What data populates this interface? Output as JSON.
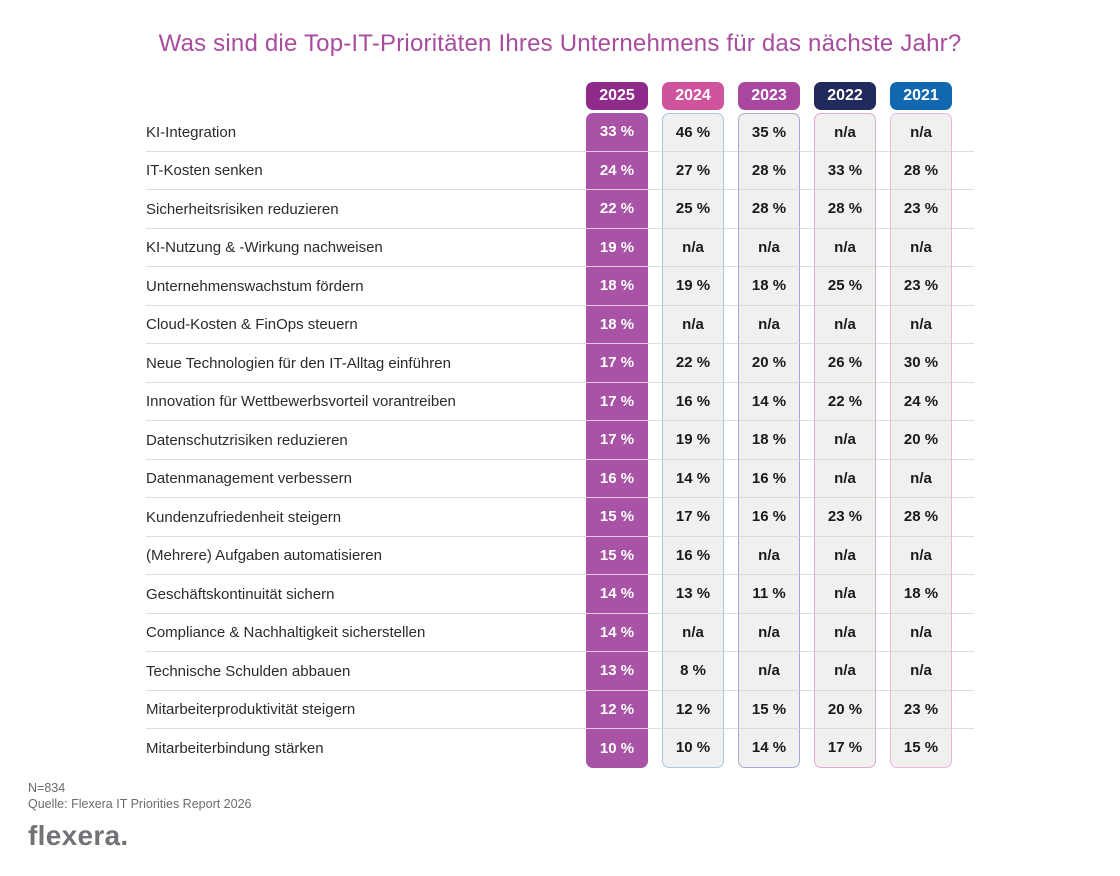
{
  "title": "Was sind die Top-IT-Prioritäten Ihres Unternehmens für das nächste Jahr?",
  "table": {
    "years": [
      {
        "label": "2025",
        "chip_bg": "#8E2B8B",
        "style": "solid",
        "column_bg": "#A853A5",
        "border": ""
      },
      {
        "label": "2024",
        "chip_bg": "#D0539E",
        "style": "outlined",
        "column_bg": "#F0F0EE",
        "border": "#A9C6E3"
      },
      {
        "label": "2023",
        "chip_bg": "#A8479F",
        "style": "outlined",
        "column_bg": "#F0F0EE",
        "border": "#A3A9D2"
      },
      {
        "label": "2022",
        "chip_bg": "#222A5C",
        "style": "outlined",
        "column_bg": "#F0F0EE",
        "border": "#E3A8D4"
      },
      {
        "label": "2021",
        "chip_bg": "#1268AE",
        "style": "outlined",
        "column_bg": "#F0F0EE",
        "border": "#E8B7DC"
      }
    ],
    "rows": [
      {
        "label": "KI-Integration",
        "values": [
          "33 %",
          "46 %",
          "35 %",
          "n/a",
          "n/a"
        ]
      },
      {
        "label": "IT-Kosten senken",
        "values": [
          "24 %",
          "27 %",
          "28 %",
          "33 %",
          "28 %"
        ]
      },
      {
        "label": "Sicherheitsrisiken reduzieren",
        "values": [
          "22 %",
          "25 %",
          "28 %",
          "28 %",
          "23 %"
        ]
      },
      {
        "label": "KI-Nutzung & -Wirkung nachweisen",
        "values": [
          "19 %",
          "n/a",
          "n/a",
          "n/a",
          "n/a"
        ]
      },
      {
        "label": "Unternehmenswachstum fördern",
        "values": [
          "18 %",
          "19 %",
          "18 %",
          "25 %",
          "23 %"
        ]
      },
      {
        "label": "Cloud-Kosten & FinOps steuern",
        "values": [
          "18 %",
          "n/a",
          "n/a",
          "n/a",
          "n/a"
        ]
      },
      {
        "label": "Neue Technologien für den IT-Alltag einführen",
        "values": [
          "17 %",
          "22 %",
          "20 %",
          "26 %",
          "30 %"
        ]
      },
      {
        "label": "Innovation für Wettbewerbsvorteil vorantreiben",
        "values": [
          "17 %",
          "16 %",
          "14 %",
          "22 %",
          "24 %"
        ]
      },
      {
        "label": "Datenschutzrisiken reduzieren",
        "values": [
          "17 %",
          "19 %",
          "18 %",
          "n/a",
          "20 %"
        ]
      },
      {
        "label": "Datenmanagement verbessern",
        "values": [
          "16 %",
          "14 %",
          "16 %",
          "n/a",
          "n/a"
        ]
      },
      {
        "label": "Kundenzufriedenheit steigern",
        "values": [
          "15 %",
          "17 %",
          "16 %",
          "23 %",
          "28 %"
        ]
      },
      {
        "label": "(Mehrere) Aufgaben automatisieren",
        "values": [
          "15 %",
          "16 %",
          "n/a",
          "n/a",
          "n/a"
        ]
      },
      {
        "label": "Geschäftskontinuität sichern",
        "values": [
          "14 %",
          "13 %",
          "11 %",
          "n/a",
          "18 %"
        ]
      },
      {
        "label": "Compliance & Nachhaltigkeit sicherstellen",
        "values": [
          "14 %",
          "n/a",
          "n/a",
          "n/a",
          "n/a"
        ]
      },
      {
        "label": "Technische Schulden abbauen",
        "values": [
          "13 %",
          "8 %",
          "n/a",
          "n/a",
          "n/a"
        ]
      },
      {
        "label": "Mitarbeiterproduktivität steigern",
        "values": [
          "12 %",
          "12 %",
          "15 %",
          "20 %",
          "23 %"
        ]
      },
      {
        "label": "Mitarbeiterbindung stärken",
        "values": [
          "10 %",
          "10 %",
          "14 %",
          "17 %",
          "15 %"
        ]
      }
    ]
  },
  "footer": {
    "sample_size": "N=834",
    "source": "Quelle: Flexera IT Priorities Report 2026",
    "logo_text": "flexera."
  },
  "colors": {
    "title": "#A84C9E",
    "solid_column_bg": "#A853A5",
    "light_column_bg": "#F0F0EE",
    "row_separator": "#DCDCDC",
    "footer_text": "#6b6b6b",
    "logo_gray": "#717377"
  },
  "chart_data": {
    "type": "table",
    "title": "Was sind die Top-IT-Prioritäten Ihres Unternehmens für das nächste Jahr?",
    "columns": [
      "2025",
      "2024",
      "2023",
      "2022",
      "2021"
    ],
    "unit": "%",
    "rows": [
      {
        "label": "KI-Integration",
        "values": [
          33,
          46,
          35,
          null,
          null
        ]
      },
      {
        "label": "IT-Kosten senken",
        "values": [
          24,
          27,
          28,
          33,
          28
        ]
      },
      {
        "label": "Sicherheitsrisiken reduzieren",
        "values": [
          22,
          25,
          28,
          28,
          23
        ]
      },
      {
        "label": "KI-Nutzung & -Wirkung nachweisen",
        "values": [
          19,
          null,
          null,
          null,
          null
        ]
      },
      {
        "label": "Unternehmenswachstum fördern",
        "values": [
          18,
          19,
          18,
          25,
          23
        ]
      },
      {
        "label": "Cloud-Kosten & FinOps steuern",
        "values": [
          18,
          null,
          null,
          null,
          null
        ]
      },
      {
        "label": "Neue Technologien für den IT-Alltag einführen",
        "values": [
          17,
          22,
          20,
          26,
          30
        ]
      },
      {
        "label": "Innovation für Wettbewerbsvorteil vorantreiben",
        "values": [
          17,
          16,
          14,
          22,
          24
        ]
      },
      {
        "label": "Datenschutzrisiken reduzieren",
        "values": [
          17,
          19,
          18,
          null,
          20
        ]
      },
      {
        "label": "Datenmanagement verbessern",
        "values": [
          16,
          14,
          16,
          null,
          null
        ]
      },
      {
        "label": "Kundenzufriedenheit steigern",
        "values": [
          15,
          17,
          16,
          23,
          28
        ]
      },
      {
        "label": "(Mehrere) Aufgaben automatisieren",
        "values": [
          15,
          16,
          null,
          null,
          null
        ]
      },
      {
        "label": "Geschäftskontinuität sichern",
        "values": [
          14,
          13,
          11,
          null,
          18
        ]
      },
      {
        "label": "Compliance & Nachhaltigkeit sicherstellen",
        "values": [
          14,
          null,
          null,
          null,
          null
        ]
      },
      {
        "label": "Technische Schulden abbauen",
        "values": [
          13,
          8,
          null,
          null,
          null
        ]
      },
      {
        "label": "Mitarbeiterproduktivität steigern",
        "values": [
          12,
          12,
          15,
          20,
          23
        ]
      },
      {
        "label": "Mitarbeiterbindung stärken",
        "values": [
          10,
          10,
          14,
          17,
          15
        ]
      }
    ],
    "sample_size": "N=834",
    "source": "Quelle: Flexera IT Priorities Report 2026",
    "legend_position": "top",
    "grid": "horizontal-separators"
  }
}
